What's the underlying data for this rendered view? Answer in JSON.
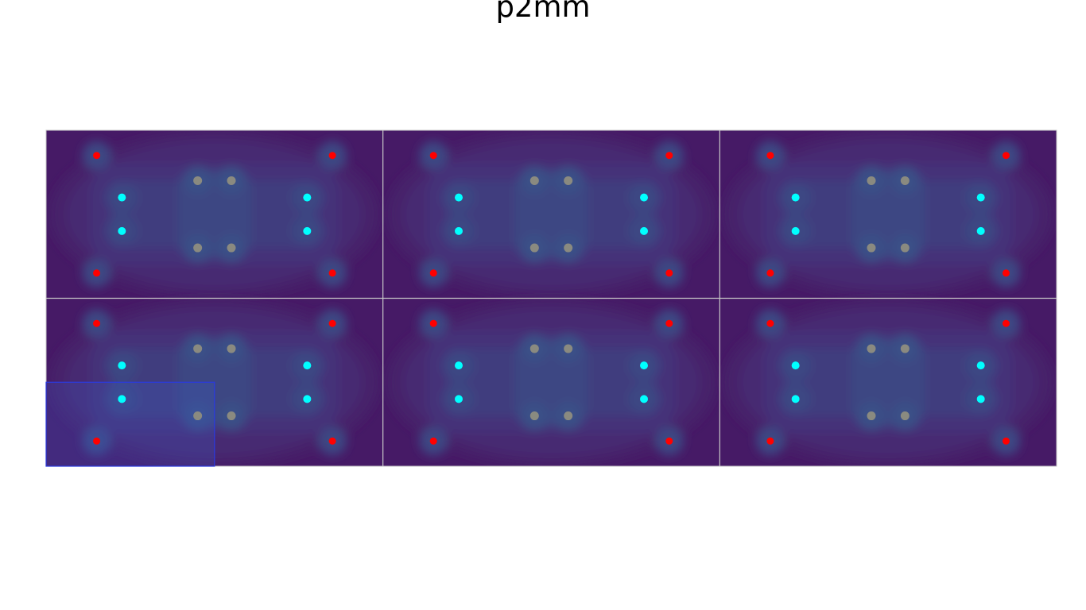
{
  "title": "p2mm",
  "grid": {
    "rows": 2,
    "cols": 3
  },
  "motif": {
    "red_points": [
      [
        0.15,
        0.15
      ],
      [
        0.85,
        0.15
      ],
      [
        0.15,
        0.85
      ],
      [
        0.85,
        0.85
      ]
    ],
    "cyan_points": [
      [
        0.225,
        0.4
      ],
      [
        0.775,
        0.4
      ],
      [
        0.225,
        0.6
      ],
      [
        0.775,
        0.6
      ]
    ],
    "gray_points": [
      [
        0.45,
        0.3
      ],
      [
        0.55,
        0.3
      ],
      [
        0.45,
        0.7
      ],
      [
        0.55,
        0.7
      ]
    ]
  },
  "fundamental_domain": {
    "cell": [
      1,
      0
    ],
    "fraction": [
      0.5,
      0.5
    ]
  },
  "colors": {
    "background": "#461a66",
    "contour_levels": [
      "#47216b",
      "#472b72",
      "#453379",
      "#413d7e",
      "#3d4683",
      "#3a5087"
    ],
    "red_point": "#ff0000",
    "cyan_point": "#00ffff",
    "gray_point": "#8a8a80",
    "cell_border": "#c8c8c8",
    "domain_fill": "rgba(60,90,200,0.25)",
    "domain_stroke": "#2a3ae0"
  }
}
